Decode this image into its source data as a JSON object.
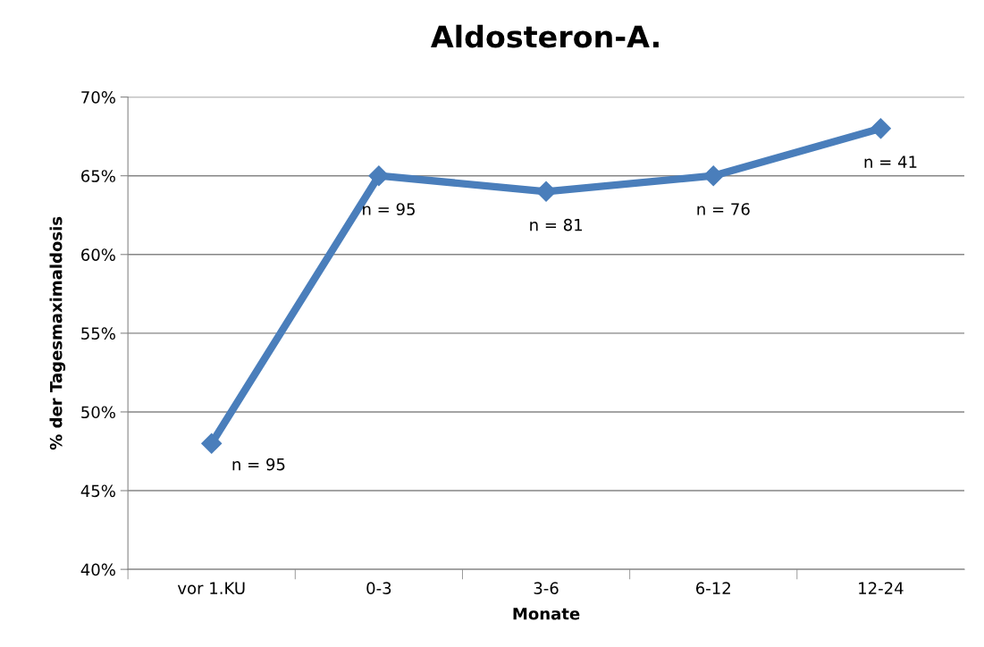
{
  "chart_data": {
    "type": "line",
    "title": "Aldosteron-A.",
    "xlabel": "Monate",
    "ylabel": "% der Tagesmaximaldosis",
    "categories": [
      "vor 1.KU",
      "0-3",
      "3-6",
      "6-12",
      "12-24"
    ],
    "series": [
      {
        "color": "#4a7ebb",
        "values": [
          48,
          65,
          64,
          65,
          68
        ]
      }
    ],
    "ylim": [
      40,
      70
    ],
    "yticks": [
      {
        "value": 40,
        "label": "40%"
      },
      {
        "value": 45,
        "label": "45%"
      },
      {
        "value": 50,
        "label": "50%"
      },
      {
        "value": 55,
        "label": "55%"
      },
      {
        "value": 60,
        "label": "60%"
      },
      {
        "value": 65,
        "label": "65%"
      },
      {
        "value": 70,
        "label": "70%"
      }
    ],
    "grid": "y",
    "marker": "diamond",
    "line_style": "solid",
    "annotations": [
      {
        "text": "n = 95",
        "x": "vor 1.KU",
        "y": 48
      },
      {
        "text": "n = 95",
        "x": "0-3",
        "y": 65
      },
      {
        "text": "n = 81",
        "x": "3-6",
        "y": 64
      },
      {
        "text": "n = 76",
        "x": "6-12",
        "y": 65
      },
      {
        "text": "n = 41",
        "x": "12-24",
        "y": 68
      }
    ]
  }
}
